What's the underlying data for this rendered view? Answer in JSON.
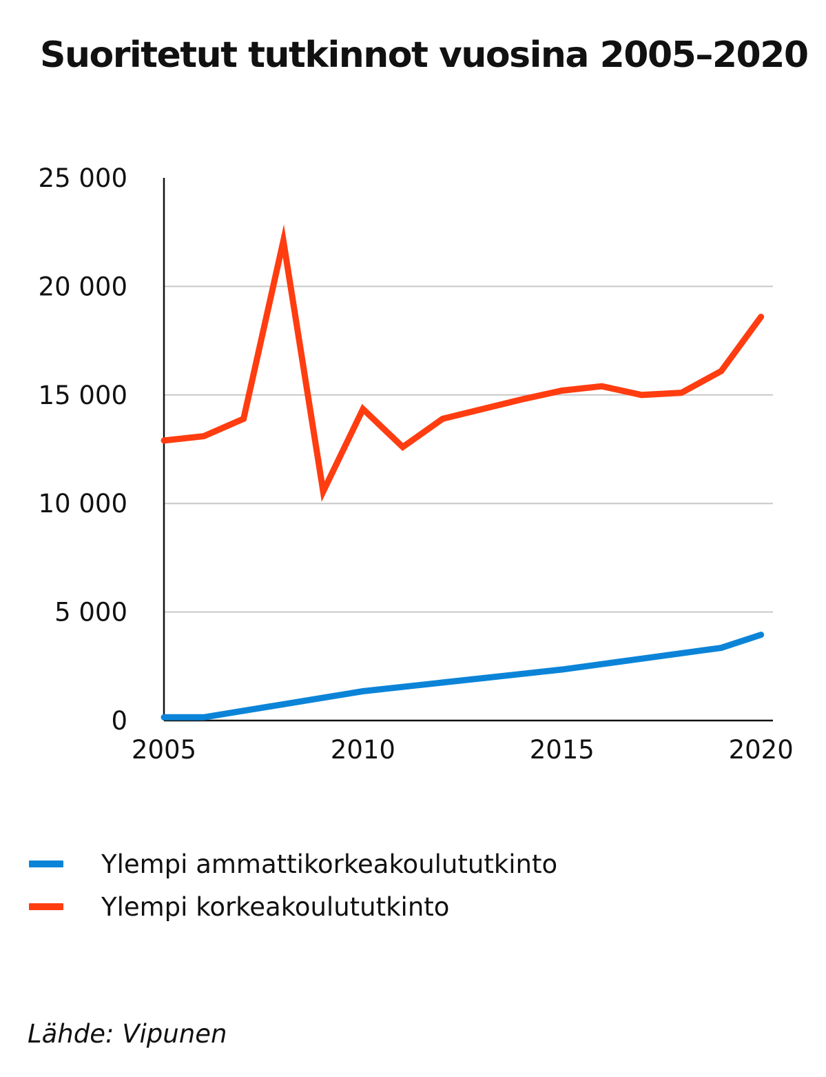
{
  "chart_data": {
    "type": "line",
    "title": "Suoritetut tutkinnot vuosina 2005–2020",
    "xlabel": "",
    "ylabel": "",
    "x": [
      2005,
      2006,
      2007,
      2008,
      2009,
      2010,
      2011,
      2012,
      2013,
      2014,
      2015,
      2016,
      2017,
      2018,
      2019,
      2020
    ],
    "xlim": [
      2005,
      2020.3
    ],
    "ylim": [
      0,
      25000
    ],
    "x_ticks": [
      2005,
      2010,
      2015,
      2020
    ],
    "x_tick_labels": [
      "2005",
      "2010",
      "2015",
      "2020"
    ],
    "y_ticks": [
      0,
      5000,
      10000,
      15000,
      20000,
      25000
    ],
    "y_tick_labels": [
      "0",
      "5 000",
      "10 000",
      "15 000",
      "20 000",
      "25 000"
    ],
    "grid": true,
    "legend_position": "bottom-left",
    "series": [
      {
        "name": "Ylempi ammattikorkeakoulututkinto",
        "color": "#0b84d8",
        "values": [
          150,
          150,
          450,
          750,
          1050,
          1350,
          1550,
          1750,
          1950,
          2150,
          2350,
          2600,
          2850,
          3100,
          3350,
          3950
        ]
      },
      {
        "name": "Ylempi korkeakoulututkinto",
        "color": "#ff3d10",
        "values": [
          12900,
          13100,
          13900,
          22100,
          10550,
          14350,
          12600,
          13900,
          14350,
          14800,
          15200,
          15400,
          15000,
          15100,
          16100,
          18600
        ]
      }
    ]
  },
  "source": "Lähde: Vipunen"
}
